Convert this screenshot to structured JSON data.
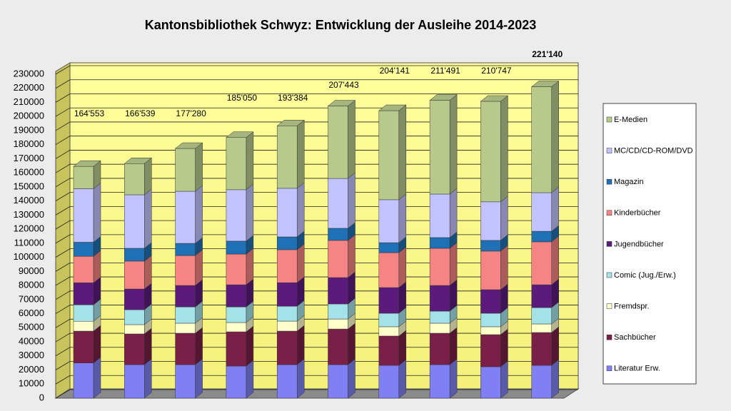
{
  "chart_data": {
    "type": "bar3d_stacked",
    "title": "Kantonsbibliothek Schwyz: Entwicklung der Ausleihe 2014-2023",
    "categories": [
      null,
      null,
      null,
      null,
      null,
      null,
      null,
      null,
      null,
      null
    ],
    "ylim": [
      0,
      230000
    ],
    "yticks": [
      0,
      10000,
      20000,
      30000,
      40000,
      50000,
      60000,
      70000,
      80000,
      90000,
      100000,
      110000,
      120000,
      130000,
      140000,
      150000,
      160000,
      170000,
      180000,
      190000,
      200000,
      210000,
      220000,
      230000
    ],
    "grid": true,
    "legend": "right",
    "series": [
      {
        "name": "Literatur Erw.",
        "color": "#8080f4",
        "values": [
          25000,
          23800,
          23800,
          22800,
          23800,
          23800,
          23300,
          23800,
          22300,
          23300
        ]
      },
      {
        "name": "Sachbücher",
        "color": "#7a1f48",
        "values": [
          22600,
          21800,
          22300,
          24300,
          23800,
          25300,
          20800,
          22300,
          22800,
          23300
        ]
      },
      {
        "name": "Fremdspr.",
        "color": "#ffffcc",
        "values": [
          7000,
          6600,
          7100,
          6600,
          7100,
          7100,
          6600,
          7100,
          5600,
          6100
        ]
      },
      {
        "name": "Comic (Jug./Erw.)",
        "color": "#a4e2ea",
        "values": [
          11700,
          10600,
          11600,
          11100,
          10600,
          10700,
          9600,
          8600,
          9600,
          11600
        ]
      },
      {
        "name": "Jugendbücher",
        "color": "#5b1a7c",
        "values": [
          15600,
          14700,
          15200,
          15700,
          16700,
          18700,
          18200,
          18200,
          16700,
          16200
        ]
      },
      {
        "name": "Kinderbücher",
        "color": "#f78484",
        "values": [
          18800,
          19800,
          21300,
          21800,
          23400,
          26400,
          24800,
          26400,
          27400,
          30500
        ]
      },
      {
        "name": "Magazin",
        "color": "#1f70b4",
        "values": [
          10000,
          9100,
          8600,
          9200,
          9100,
          8600,
          7100,
          7600,
          7600,
          7500
        ]
      },
      {
        "name": "MC/CD/CD-ROM/DVD",
        "color": "#c2c2ff",
        "values": [
          38000,
          38000,
          37000,
          36500,
          34500,
          35400,
          30500,
          30900,
          27400,
          27400
        ]
      },
      {
        "name": "E-Medien",
        "color": "#b8c98c",
        "values": [
          15853,
          22139,
          30380,
          37050,
          44384,
          51443,
          63241,
          66591,
          71347,
          75240
        ]
      }
    ],
    "totals": {
      "values": [
        164553,
        166539,
        177280,
        185050,
        193384,
        207443,
        204141,
        211491,
        210747,
        221140
      ],
      "value_labels": [
        "164'553",
        "166'539",
        "177'280",
        "185'050",
        "193'384",
        "207'443",
        "204'141",
        "211'491",
        "210'747",
        "221'140"
      ]
    }
  }
}
